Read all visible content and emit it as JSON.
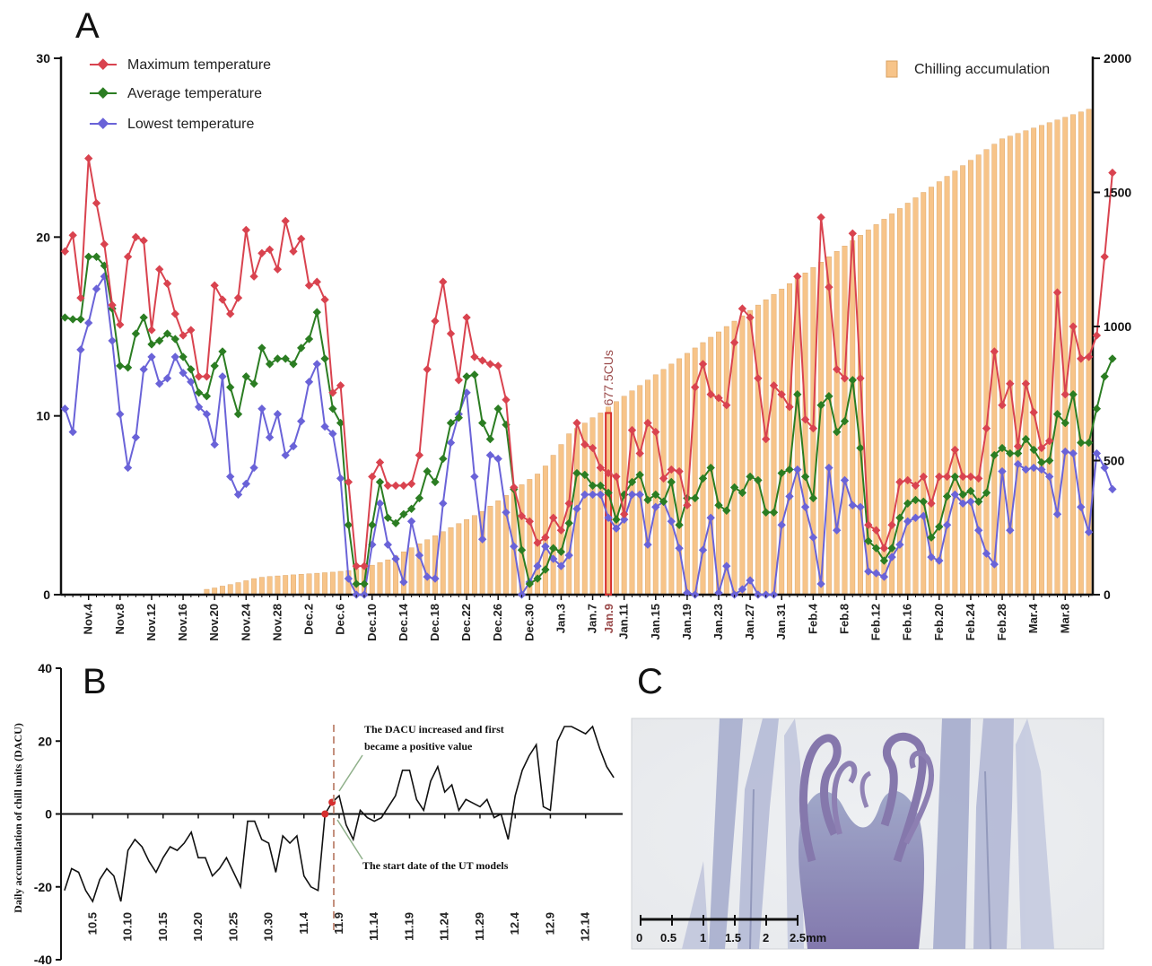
{
  "panels": {
    "a": "A",
    "b": "B",
    "c": "C"
  },
  "colors": {
    "max": "#d9434f",
    "avg": "#2b7d22",
    "low": "#6a63d8",
    "bar": "#f7c489",
    "bar_edge": "#d8a060",
    "marker": "#d62e2e",
    "marker_label": "#9a4a4a",
    "dacu_line": "#111111",
    "dashed": "#c4907e"
  },
  "chart_data": [
    {
      "type": "line",
      "panel": "A",
      "legend": [
        "Maximum temperature",
        "Average temperature",
        "Lowest temperature",
        "Chilling accumulation"
      ],
      "left_ylim": [
        0,
        30
      ],
      "left_yticks": [
        "0",
        "10",
        "20",
        "30"
      ],
      "right_ylim": [
        0,
        2000
      ],
      "right_yticks": [
        "0",
        "500",
        "1000",
        "1500",
        "2000"
      ],
      "x_tick_labels": [
        "Nov.4",
        "Nov.8",
        "Nov.12",
        "Nov.16",
        "Nov.20",
        "Nov.24",
        "Nov.28",
        "Dec.2",
        "Dec.6",
        "Dec.10",
        "Dec.14",
        "Dec.18",
        "Dec.22",
        "Dec.26",
        "Dec.30",
        "Jan.3",
        "Jan.7",
        "Jan.11",
        "Jan.15",
        "Jan.19",
        "Jan.23",
        "Jan.27",
        "Jan.31",
        "Feb.4",
        "Feb.8",
        "Feb.12",
        "Feb.16",
        "Feb.20",
        "Feb.24",
        "Feb.28",
        "Mar.4",
        "Mar.8"
      ],
      "x_start_date": "Nov.1",
      "day_count": 131,
      "series": [
        {
          "name": "Maximum temperature",
          "values": [
            19.2,
            20.1,
            16.6,
            24.4,
            21.9,
            19.6,
            16.2,
            15.1,
            18.9,
            20.0,
            19.8,
            14.8,
            18.2,
            17.4,
            15.7,
            14.5,
            14.8,
            12.2,
            12.2,
            17.3,
            16.5,
            15.7,
            16.6,
            20.4,
            17.8,
            19.1,
            19.3,
            18.2,
            20.9,
            19.2,
            19.9,
            17.3,
            17.5,
            16.5,
            11.3,
            11.7,
            6.3,
            1.6,
            1.6,
            6.6,
            7.4,
            6.1,
            6.1,
            6.1,
            6.2,
            7.8,
            12.6,
            15.3,
            17.5,
            14.6,
            12.0,
            15.5,
            13.3,
            13.1,
            12.9,
            12.8,
            10.9,
            6.0,
            4.4,
            4.1,
            2.9,
            3.2,
            4.3,
            3.6,
            5.1,
            9.6,
            8.4,
            8.2,
            7.1,
            6.8,
            6.6,
            4.5,
            9.2,
            7.9,
            9.6,
            9.1,
            6.5,
            7.0,
            6.9,
            5.0,
            11.6,
            12.9,
            11.2,
            11.0,
            10.6,
            14.1,
            16.0,
            15.5,
            12.1,
            8.7,
            11.7,
            11.2,
            10.5,
            17.8,
            9.8,
            9.3,
            21.1,
            17.2,
            12.6,
            12.1,
            20.2,
            12.1,
            3.9,
            3.6,
            2.6,
            3.9,
            6.3,
            6.4,
            6.1,
            6.6,
            5.1,
            6.6,
            6.6,
            8.1,
            6.6,
            6.6,
            6.5,
            9.3,
            13.6,
            10.6,
            11.8,
            8.3,
            11.8,
            10.2,
            8.2,
            8.6,
            16.9,
            11.2,
            15.0,
            13.2,
            13.3,
            14.5,
            18.9,
            23.6
          ]
        },
        {
          "name": "Average temperature",
          "values": [
            15.5,
            15.4,
            15.4,
            18.9,
            18.9,
            18.4,
            16.0,
            12.8,
            12.7,
            14.6,
            15.5,
            14.0,
            14.2,
            14.6,
            14.3,
            13.3,
            12.6,
            11.3,
            11.1,
            12.8,
            13.6,
            11.6,
            10.1,
            12.2,
            11.8,
            13.8,
            12.9,
            13.2,
            13.2,
            12.9,
            13.8,
            14.3,
            15.8,
            13.2,
            10.4,
            9.6,
            3.9,
            0.6,
            0.6,
            3.9,
            6.3,
            4.3,
            4.0,
            4.5,
            4.8,
            5.4,
            6.9,
            6.3,
            7.6,
            9.6,
            9.9,
            12.2,
            12.3,
            9.6,
            8.7,
            10.4,
            9.5,
            5.9,
            2.5,
            0.6,
            0.9,
            1.4,
            2.6,
            2.4,
            4.0,
            6.8,
            6.7,
            6.1,
            6.1,
            5.7,
            4.2,
            5.6,
            6.3,
            6.7,
            5.3,
            5.6,
            5.2,
            6.3,
            3.9,
            5.4,
            5.4,
            6.5,
            7.1,
            5.0,
            4.7,
            6.0,
            5.7,
            6.6,
            6.4,
            4.6,
            4.6,
            6.8,
            7.0,
            11.2,
            6.6,
            5.4,
            10.6,
            11.1,
            9.1,
            9.7,
            12.0,
            8.2,
            3.0,
            2.6,
            1.9,
            2.6,
            4.3,
            5.1,
            5.3,
            5.2,
            3.2,
            3.8,
            5.5,
            6.6,
            5.6,
            5.8,
            5.2,
            5.7,
            7.8,
            8.2,
            7.9,
            7.9,
            8.7,
            8.1,
            7.4,
            7.5,
            10.1,
            9.6,
            11.2,
            8.5,
            8.5,
            10.4,
            12.2,
            13.2
          ]
        },
        {
          "name": "Lowest temperature",
          "values": [
            10.4,
            9.1,
            13.7,
            15.2,
            17.1,
            17.8,
            14.2,
            10.1,
            7.1,
            8.8,
            12.6,
            13.3,
            11.8,
            12.1,
            13.3,
            12.4,
            11.9,
            10.5,
            10.1,
            8.4,
            12.2,
            6.6,
            5.6,
            6.2,
            7.1,
            10.4,
            8.8,
            10.1,
            7.8,
            8.3,
            9.7,
            11.9,
            12.9,
            9.4,
            9.0,
            6.5,
            0.9,
            0.0,
            0.0,
            2.8,
            5.1,
            2.8,
            2.0,
            0.7,
            4.1,
            2.2,
            1.0,
            0.9,
            5.1,
            8.5,
            10.1,
            11.3,
            6.6,
            3.1,
            7.8,
            7.6,
            4.6,
            2.7,
            0.0,
            0.7,
            1.6,
            2.7,
            2.0,
            1.6,
            2.2,
            4.8,
            5.6,
            5.6,
            5.6,
            4.3,
            3.7,
            4.2,
            5.6,
            5.6,
            2.8,
            4.9,
            5.2,
            4.1,
            2.6,
            0.1,
            0.0,
            2.5,
            4.3,
            0.1,
            1.6,
            0.0,
            0.3,
            0.8,
            0.0,
            0.0,
            0.0,
            3.9,
            5.5,
            7.0,
            4.9,
            3.2,
            0.6,
            7.1,
            3.6,
            6.4,
            5.0,
            4.9,
            1.3,
            1.2,
            1.0,
            2.1,
            2.8,
            4.1,
            4.3,
            4.4,
            2.1,
            1.9,
            3.9,
            5.6,
            5.1,
            5.2,
            3.6,
            2.3,
            1.7,
            6.9,
            3.6,
            7.3,
            7.0,
            7.1,
            7.0,
            6.6,
            4.5,
            8.0,
            7.9,
            4.9,
            3.5,
            7.9,
            7.1,
            5.9
          ]
        },
        {
          "name": "Chilling accumulation",
          "values": [
            0,
            0,
            0,
            0,
            0,
            0,
            0,
            0,
            0,
            0,
            0,
            0,
            0,
            0,
            0,
            0,
            0,
            0,
            20,
            25,
            32,
            38,
            45,
            52,
            60,
            65,
            68,
            70,
            72,
            74,
            76,
            78,
            80,
            82,
            84,
            87,
            90,
            95,
            100,
            110,
            120,
            130,
            145,
            160,
            175,
            190,
            205,
            220,
            235,
            250,
            265,
            280,
            295,
            310,
            330,
            350,
            370,
            390,
            410,
            430,
            450,
            480,
            520,
            560,
            600,
            620,
            640,
            660,
            677.5,
            700,
            720,
            740,
            760,
            780,
            800,
            820,
            840,
            860,
            880,
            900,
            920,
            940,
            960,
            980,
            1000,
            1020,
            1040,
            1060,
            1080,
            1100,
            1120,
            1140,
            1160,
            1180,
            1200,
            1220,
            1240,
            1260,
            1280,
            1300,
            1320,
            1340,
            1360,
            1380,
            1400,
            1420,
            1440,
            1460,
            1480,
            1500,
            1520,
            1540,
            1560,
            1580,
            1600,
            1620,
            1640,
            1660,
            1680,
            1700,
            1710,
            1720,
            1730,
            1740,
            1750,
            1760,
            1770,
            1780,
            1790,
            1800,
            1810
          ]
        }
      ],
      "annotation": {
        "date_label": "Jan.9",
        "value_label": "677.5CUs"
      }
    },
    {
      "type": "line",
      "panel": "B",
      "ylabel": "Daily accumulation of chill units (DACU)",
      "ylim": [
        -40,
        40
      ],
      "yticks": [
        "-40",
        "-20",
        "0",
        "20",
        "40"
      ],
      "x_tick_labels": [
        "10.5",
        "10.10",
        "10.15",
        "10.20",
        "10.25",
        "10.30",
        "11.4",
        "11.9",
        "11.14",
        "11.19",
        "11.24",
        "11.29",
        "12.4",
        "12.9",
        "12.14"
      ],
      "x_start_date": "10.1",
      "values": [
        -21,
        -15,
        -16,
        -21,
        -24,
        -18,
        -15,
        -17,
        -24,
        -10,
        -7,
        -9,
        -13,
        -16,
        -12,
        -9,
        -10,
        -8,
        -5,
        -12,
        -12,
        -17,
        -15,
        -12,
        -16,
        -20,
        -2,
        -2,
        -7,
        -8,
        -16,
        -6,
        -8,
        -6,
        -17,
        -20,
        -21,
        0,
        3.2,
        5,
        -3,
        -7,
        1,
        -1,
        -2,
        -1,
        2,
        5,
        12,
        12,
        4,
        1,
        9,
        13,
        6,
        8,
        1,
        4,
        3,
        2,
        4,
        -1,
        0,
        -7,
        5,
        12,
        16,
        19,
        2,
        1,
        20,
        24,
        24,
        23,
        22,
        24,
        18,
        13,
        10
      ],
      "annotations": [
        "The DACU increased and first",
        "became a positive value",
        "The start date of the UT models"
      ]
    }
  ],
  "micrograph": {
    "scale_labels": [
      "0",
      "0.5",
      "1",
      "1.5",
      "2",
      "2.5mm"
    ]
  }
}
